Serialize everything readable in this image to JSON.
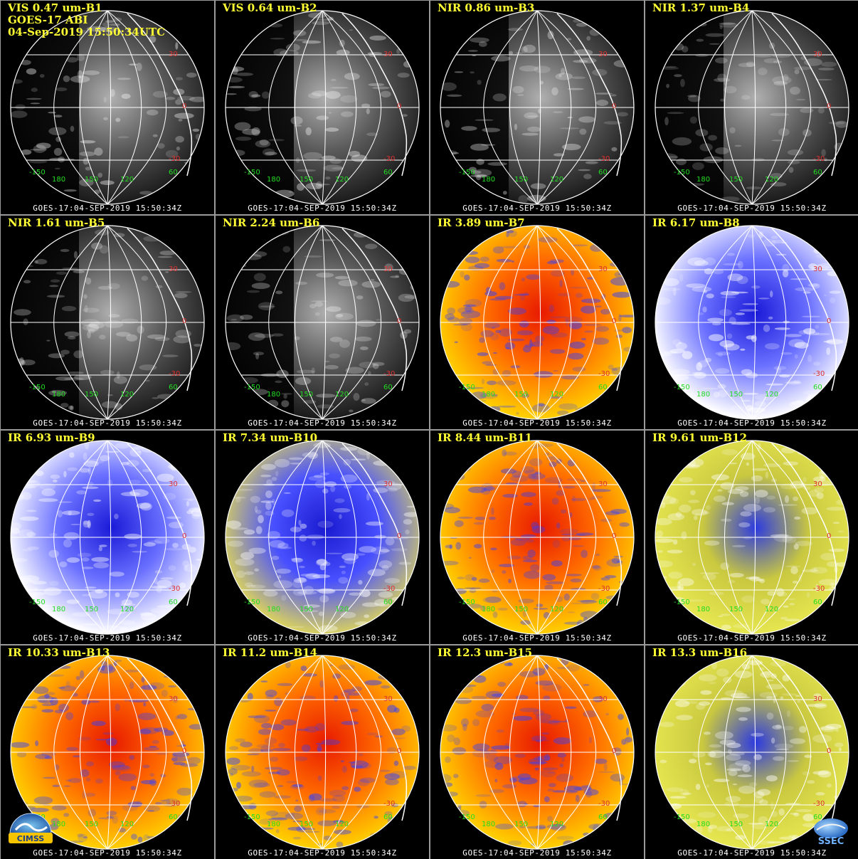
{
  "header": {
    "satellite": "GOES-17 ABI",
    "datetime": "04-Sep-2019 15:50:34UTC"
  },
  "footer_text": "GOES-17:04-SEP-2019 15:50:34Z",
  "lat_labels": [
    "30",
    "0",
    "-30"
  ],
  "lon_labels": [
    "-150",
    "180",
    "150",
    "120",
    "60"
  ],
  "panels": [
    {
      "title": "VIS 0.47 um-B1",
      "palette": "vis",
      "brightness": 0.55
    },
    {
      "title": "VIS 0.64 um-B2",
      "palette": "vis",
      "brightness": 0.5
    },
    {
      "title": "NIR 0.86 um-B3",
      "palette": "vis",
      "brightness": 0.45
    },
    {
      "title": "NIR 1.37 um-B4",
      "palette": "vis",
      "brightness": 0.2
    },
    {
      "title": "NIR 1.61 um-B5",
      "palette": "vis",
      "brightness": 0.3
    },
    {
      "title": "NIR 2.24 um-B6",
      "palette": "vis",
      "brightness": 0.35
    },
    {
      "title": "IR 3.89 um-B7",
      "palette": "warm",
      "brightness": 0.8
    },
    {
      "title": "IR 6.17 um-B8",
      "palette": "wv",
      "brightness": 0.9
    },
    {
      "title": "IR 6.93 um-B9",
      "palette": "wv",
      "brightness": 0.7
    },
    {
      "title": "IR 7.34 um-B10",
      "palette": "wvy",
      "brightness": 0.6
    },
    {
      "title": "IR 8.44 um-B11",
      "palette": "warm",
      "brightness": 0.7
    },
    {
      "title": "IR 9.61 um-B12",
      "palette": "yellow",
      "brightness": 0.6
    },
    {
      "title": "IR 10.33 um-B13",
      "palette": "warm",
      "brightness": 0.8
    },
    {
      "title": "IR 11.2 um-B14",
      "palette": "warm",
      "brightness": 0.8
    },
    {
      "title": "IR 12.3 um-B15",
      "palette": "warm",
      "brightness": 0.78
    },
    {
      "title": "IR 13.3 um-B16",
      "palette": "yellow",
      "brightness": 0.7
    }
  ],
  "logos": {
    "left": "CIMSS",
    "right": "SSEC"
  },
  "colors": {
    "title": "#ffff33",
    "lat_label": "#e03030",
    "lon_label": "#22dd22",
    "grid": "#ffffff"
  }
}
